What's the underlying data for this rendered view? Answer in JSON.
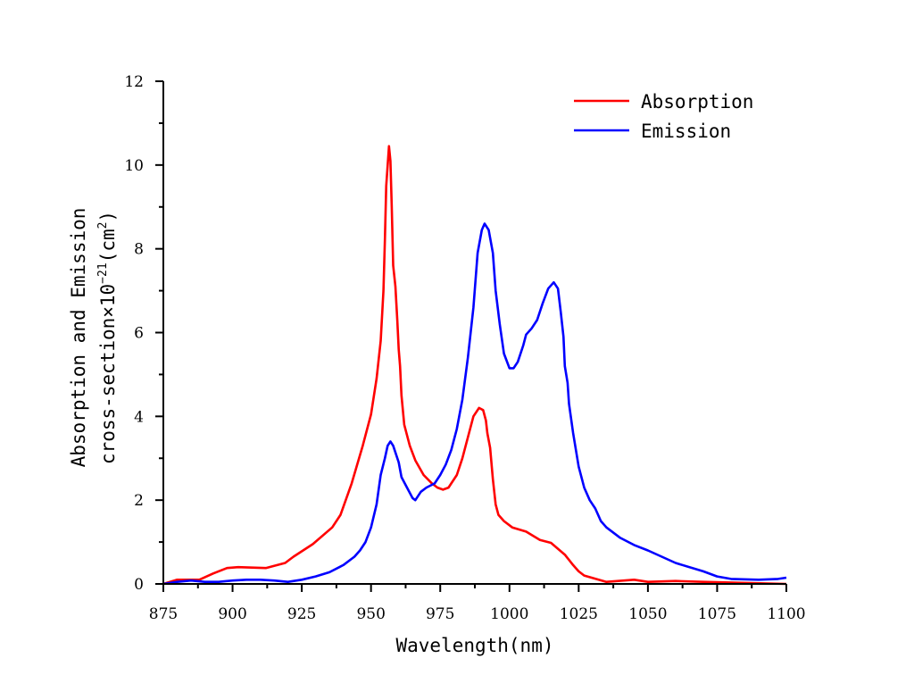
{
  "chart_data": {
    "type": "line",
    "title": "",
    "xlabel": "Wavelength(nm)",
    "ylabel_line1": "Absorption and Emission",
    "ylabel_line2_prefix": "cross-section×10",
    "ylabel_exp": "−21",
    "ylabel_unit_prefix": "(cm",
    "ylabel_unit_exp": "2",
    "ylabel_unit_suffix": ")",
    "xlim": [
      875,
      1100
    ],
    "ylim": [
      0,
      12
    ],
    "xticks": [
      875,
      900,
      925,
      950,
      975,
      1000,
      1025,
      1050,
      1075,
      1100
    ],
    "yticks": [
      0,
      2,
      4,
      6,
      8,
      10,
      12
    ],
    "grid": false,
    "legend_position": "top-right",
    "series": [
      {
        "name": "Absorption",
        "color": "#ff0000",
        "x": [
          875,
          880,
          885,
          888,
          893,
          898,
          902,
          907,
          912,
          919,
          922,
          929,
          936,
          939,
          943,
          947,
          950,
          952,
          953.5,
          954.5,
          955,
          955.5,
          956.5,
          957,
          957.5,
          958,
          958.8,
          959.5,
          960,
          960.5,
          961,
          962,
          964,
          966,
          969,
          972,
          974,
          976,
          978,
          979,
          981,
          983,
          985,
          987,
          989,
          990.5,
          991.5,
          992,
          993,
          994,
          995,
          996,
          998,
          1001,
          1006,
          1011,
          1015,
          1020,
          1023,
          1025,
          1027,
          1035,
          1045,
          1050,
          1060,
          1070,
          1100
        ],
        "y": [
          0,
          0.1,
          0.1,
          0.1,
          0.25,
          0.38,
          0.4,
          0.39,
          0.38,
          0.5,
          0.65,
          0.95,
          1.35,
          1.65,
          2.4,
          3.3,
          4.05,
          4.9,
          5.8,
          7.0,
          8.2,
          9.5,
          10.45,
          10.1,
          9.0,
          7.6,
          7.1,
          6.3,
          5.6,
          5.2,
          4.5,
          3.8,
          3.3,
          2.95,
          2.6,
          2.4,
          2.3,
          2.25,
          2.3,
          2.4,
          2.6,
          3.0,
          3.5,
          4.0,
          4.2,
          4.15,
          3.9,
          3.6,
          3.25,
          2.5,
          1.9,
          1.65,
          1.5,
          1.35,
          1.25,
          1.05,
          0.98,
          0.7,
          0.45,
          0.3,
          0.2,
          0.05,
          0.1,
          0.05,
          0.07,
          0.05,
          0
        ]
      },
      {
        "name": "Emission",
        "color": "#0000ff",
        "x": [
          875,
          880,
          885,
          890,
          895,
          900,
          905,
          910,
          915,
          920,
          925,
          930,
          935,
          940,
          944,
          946,
          948,
          950,
          952,
          953.5,
          955,
          956,
          957,
          958,
          960,
          961,
          963,
          965,
          966,
          968,
          970,
          973,
          975,
          977,
          979,
          981,
          983,
          985,
          987,
          988.5,
          990,
          991,
          992.5,
          994,
          995,
          996.5,
          998,
          1000,
          1001.5,
          1003,
          1005,
          1006,
          1008,
          1010,
          1012,
          1014,
          1016,
          1017.5,
          1018.5,
          1019.5,
          1020,
          1021,
          1021.5,
          1023,
          1025,
          1027,
          1029,
          1031,
          1033,
          1035,
          1040,
          1045,
          1050,
          1055,
          1060,
          1070,
          1075,
          1080,
          1090,
          1097,
          1100
        ],
        "y": [
          0,
          0.05,
          0.08,
          0.05,
          0.05,
          0.08,
          0.1,
          0.1,
          0.08,
          0.05,
          0.1,
          0.18,
          0.28,
          0.45,
          0.65,
          0.8,
          1.0,
          1.35,
          1.9,
          2.6,
          3.0,
          3.3,
          3.4,
          3.3,
          2.9,
          2.55,
          2.3,
          2.05,
          2.0,
          2.2,
          2.3,
          2.4,
          2.6,
          2.85,
          3.2,
          3.7,
          4.4,
          5.4,
          6.6,
          7.9,
          8.45,
          8.6,
          8.45,
          7.9,
          7.0,
          6.2,
          5.5,
          5.15,
          5.15,
          5.3,
          5.7,
          5.95,
          6.1,
          6.3,
          6.7,
          7.05,
          7.2,
          7.05,
          6.5,
          5.9,
          5.2,
          4.8,
          4.3,
          3.6,
          2.8,
          2.3,
          2.0,
          1.8,
          1.5,
          1.35,
          1.1,
          0.93,
          0.8,
          0.65,
          0.5,
          0.3,
          0.18,
          0.12,
          0.1,
          0.12,
          0.15
        ]
      }
    ]
  }
}
